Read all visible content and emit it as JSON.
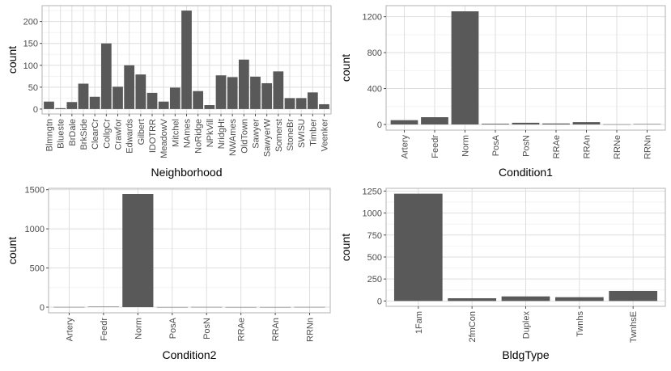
{
  "colors": {
    "bar": "#595959",
    "grid_major": "#dedede",
    "grid_minor": "#ececec",
    "panel_border": "#b3b3b3",
    "tick_text": "#4d4d4d",
    "axis_title": "#000000"
  },
  "chart_data": [
    {
      "type": "bar",
      "xlabel": "Neighborhood",
      "ylabel": "count",
      "ylim": [
        0,
        235
      ],
      "yticks": [
        0,
        50,
        100,
        150,
        200
      ],
      "categories": [
        "Blmngtn",
        "Blueste",
        "BrDale",
        "BrkSide",
        "ClearCr",
        "CollgCr",
        "Crawfor",
        "Edwards",
        "Gilbert",
        "IDOTRR",
        "MeadowV",
        "Mitchel",
        "NAmes",
        "NoRidge",
        "NPkVill",
        "NridgHt",
        "NWAmes",
        "OldTown",
        "Sawyer",
        "SawyerW",
        "Somerst",
        "StoneBr",
        "SWISU",
        "Timber",
        "Veenker"
      ],
      "values": [
        17,
        2,
        16,
        58,
        28,
        150,
        51,
        100,
        79,
        37,
        17,
        49,
        225,
        41,
        9,
        77,
        73,
        113,
        74,
        59,
        86,
        25,
        25,
        38,
        11
      ],
      "grid": true
    },
    {
      "type": "bar",
      "xlabel": "Condition1",
      "ylabel": "count",
      "ylim": [
        0,
        1300
      ],
      "yticks": [
        0,
        400,
        800,
        1200
      ],
      "categories": [
        "Artery",
        "Feedr",
        "Norm",
        "PosA",
        "PosN",
        "RRAe",
        "RRAn",
        "RRNe",
        "RRNn"
      ],
      "values": [
        48,
        81,
        1260,
        8,
        19,
        11,
        26,
        2,
        5
      ],
      "grid": true
    },
    {
      "type": "bar",
      "xlabel": "Condition2",
      "ylabel": "count",
      "ylim": [
        0,
        1500
      ],
      "yticks": [
        0,
        500,
        1000,
        1500
      ],
      "categories": [
        "Artery",
        "Feedr",
        "Norm",
        "PosA",
        "PosN",
        "RRAe",
        "RRAn",
        "RRNn"
      ],
      "values": [
        2,
        6,
        1445,
        1,
        2,
        1,
        1,
        2
      ],
      "grid": true
    },
    {
      "type": "bar",
      "xlabel": "BldgType",
      "ylabel": "count",
      "ylim": [
        0,
        1250
      ],
      "yticks": [
        0,
        250,
        500,
        750,
        1000,
        1250
      ],
      "categories": [
        "1Fam",
        "2fmCon",
        "Duplex",
        "Twnhs",
        "TwnhsE"
      ],
      "values": [
        1220,
        31,
        52,
        43,
        114
      ],
      "grid": true
    }
  ]
}
